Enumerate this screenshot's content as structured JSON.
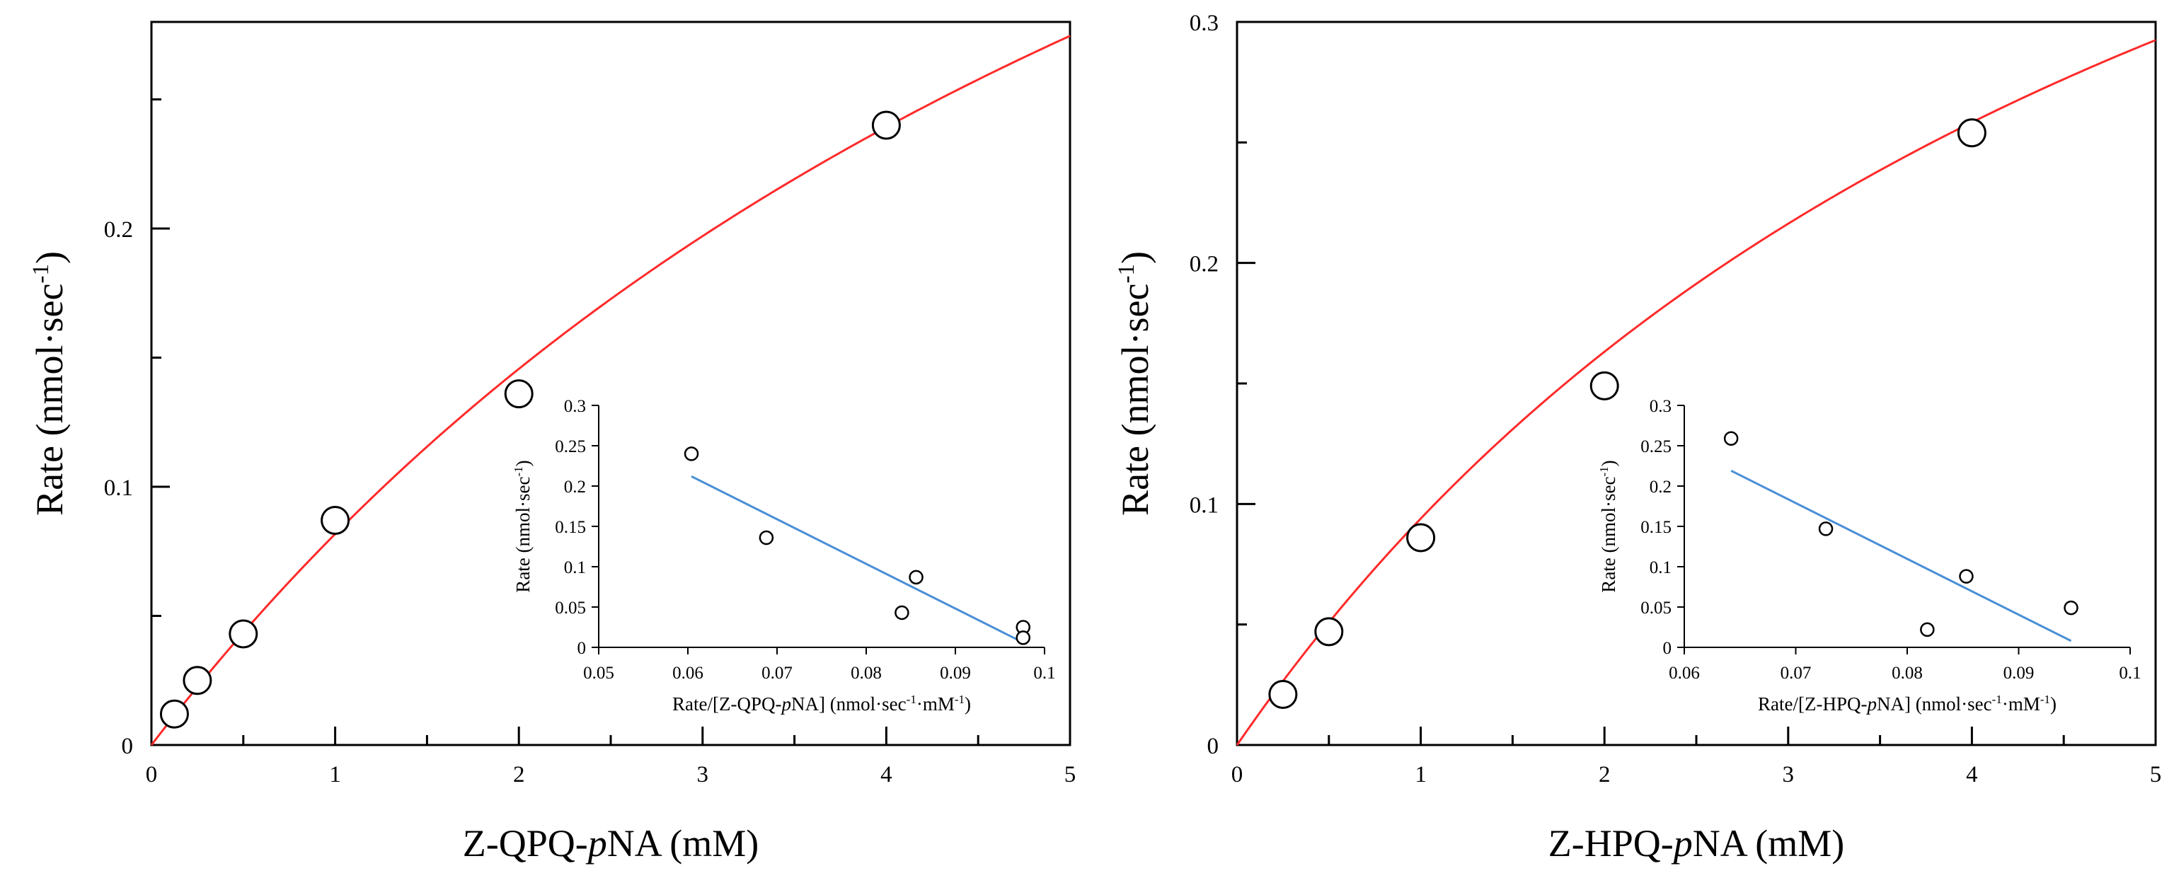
{
  "colors": {
    "fit_curve": "#ff2a2a",
    "regression_line": "#4a8fd6",
    "axis": "#000000",
    "marker_fill": "#ffffff",
    "marker_stroke": "#000000"
  },
  "chart_data": [
    {
      "type": "scatter",
      "title": "",
      "xlabel": {
        "main": "Z-QPQ-",
        "italic": "p",
        "tail": "NA (mM)"
      },
      "ylabel": {
        "main": "Rate (nmol·sec",
        "sup": "-1",
        "tail": ")"
      },
      "xlim": [
        0,
        5
      ],
      "ylim": [
        0,
        0.28
      ],
      "x_ticks": [
        0,
        1,
        2,
        3,
        4,
        5
      ],
      "x_tick_labels": [
        "0",
        "1",
        "2",
        "3",
        "4",
        "5"
      ],
      "y_ticks": [
        0,
        0.1,
        0.2
      ],
      "y_tick_labels": [
        "0",
        "0.1",
        "0.2"
      ],
      "series": [
        {
          "name": "data",
          "kind": "markers",
          "x": [
            0.125,
            0.25,
            0.5,
            1,
            2,
            4
          ],
          "y": [
            0.012,
            0.025,
            0.043,
            0.087,
            0.136,
            0.24
          ]
        },
        {
          "name": "fit",
          "kind": "line",
          "model": "michaelis-menten",
          "vmax": 0.67,
          "km": 7.2
        }
      ],
      "inset": {
        "type": "scatter",
        "xlabel": {
          "main": "Rate/[Z-QPQ-",
          "italic": "p",
          "tail": "NA] (nmol·sec",
          "sup1": "-1",
          "mid": "·mM",
          "sup2": "-1",
          "end": ")"
        },
        "ylabel": {
          "main": "Rate (nmol·sec",
          "sup": "-1",
          "tail": ")"
        },
        "xlim": [
          0.05,
          0.1
        ],
        "ylim": [
          0,
          0.3
        ],
        "x_ticks": [
          0.05,
          0.06,
          0.07,
          0.08,
          0.09,
          0.1
        ],
        "x_tick_labels": [
          "0.05",
          "0.06",
          "0.07",
          "0.08",
          "0.09",
          "0.1"
        ],
        "y_ticks": [
          0,
          0.05,
          0.1,
          0.15,
          0.2,
          0.25,
          0.3
        ],
        "y_tick_labels": [
          "0",
          "0.05",
          "0.1",
          "0.15",
          "0.2",
          "0.25",
          "0.3"
        ],
        "points": {
          "x": [
            0.0604,
            0.0688,
            0.084,
            0.0856,
            0.0976,
            0.0976
          ],
          "y": [
            0.24,
            0.136,
            0.043,
            0.087,
            0.025,
            0.012
          ]
        },
        "regression": {
          "x": [
            0.0604,
            0.0976
          ],
          "y": [
            0.212,
            0.006
          ]
        }
      }
    },
    {
      "type": "scatter",
      "title": "",
      "xlabel": {
        "main": "Z-HPQ-",
        "italic": "p",
        "tail": "NA (mM)"
      },
      "ylabel": {
        "main": "Rate (nmol·sec",
        "sup": "-1",
        "tail": ")"
      },
      "xlim": [
        0,
        5
      ],
      "ylim": [
        0,
        0.3
      ],
      "x_ticks": [
        0,
        1,
        2,
        3,
        4,
        5
      ],
      "x_tick_labels": [
        "0",
        "1",
        "2",
        "3",
        "4",
        "5"
      ],
      "y_ticks": [
        0,
        0.1,
        0.2,
        0.3
      ],
      "y_tick_labels": [
        "0",
        "0.1",
        "0.2",
        "0.3"
      ],
      "series": [
        {
          "name": "data",
          "kind": "markers",
          "x": [
            0.25,
            0.5,
            1,
            2,
            4
          ],
          "y": [
            0.021,
            0.047,
            0.086,
            0.149,
            0.254
          ]
        },
        {
          "name": "fit",
          "kind": "line",
          "model": "michaelis-menten",
          "vmax": 0.62,
          "km": 5.6
        }
      ],
      "inset": {
        "type": "scatter",
        "xlabel": {
          "main": "Rate/[Z-HPQ-",
          "italic": "p",
          "tail": "NA] (nmol·sec",
          "sup1": "-1",
          "mid": "·mM",
          "sup2": "-1",
          "end": ")"
        },
        "ylabel": {
          "main": "Rate (nmol·sec",
          "sup": "-1",
          "tail": ")"
        },
        "xlim": [
          0.06,
          0.1
        ],
        "ylim": [
          0,
          0.3
        ],
        "x_ticks": [
          0.06,
          0.07,
          0.08,
          0.09,
          0.1
        ],
        "x_tick_labels": [
          "0.06",
          "0.07",
          "0.08",
          "0.09",
          "0.1"
        ],
        "y_ticks": [
          0,
          0.05,
          0.1,
          0.15,
          0.2,
          0.25,
          0.3
        ],
        "y_tick_labels": [
          "0",
          "0.05",
          "0.1",
          "0.15",
          "0.2",
          "0.25",
          "0.3"
        ],
        "points": {
          "x": [
            0.0642,
            0.0727,
            0.0818,
            0.0853,
            0.0947
          ],
          "y": [
            0.259,
            0.147,
            0.022,
            0.088,
            0.049
          ]
        },
        "regression": {
          "x": [
            0.0642,
            0.0947
          ],
          "y": [
            0.219,
            0.008
          ]
        }
      }
    }
  ]
}
